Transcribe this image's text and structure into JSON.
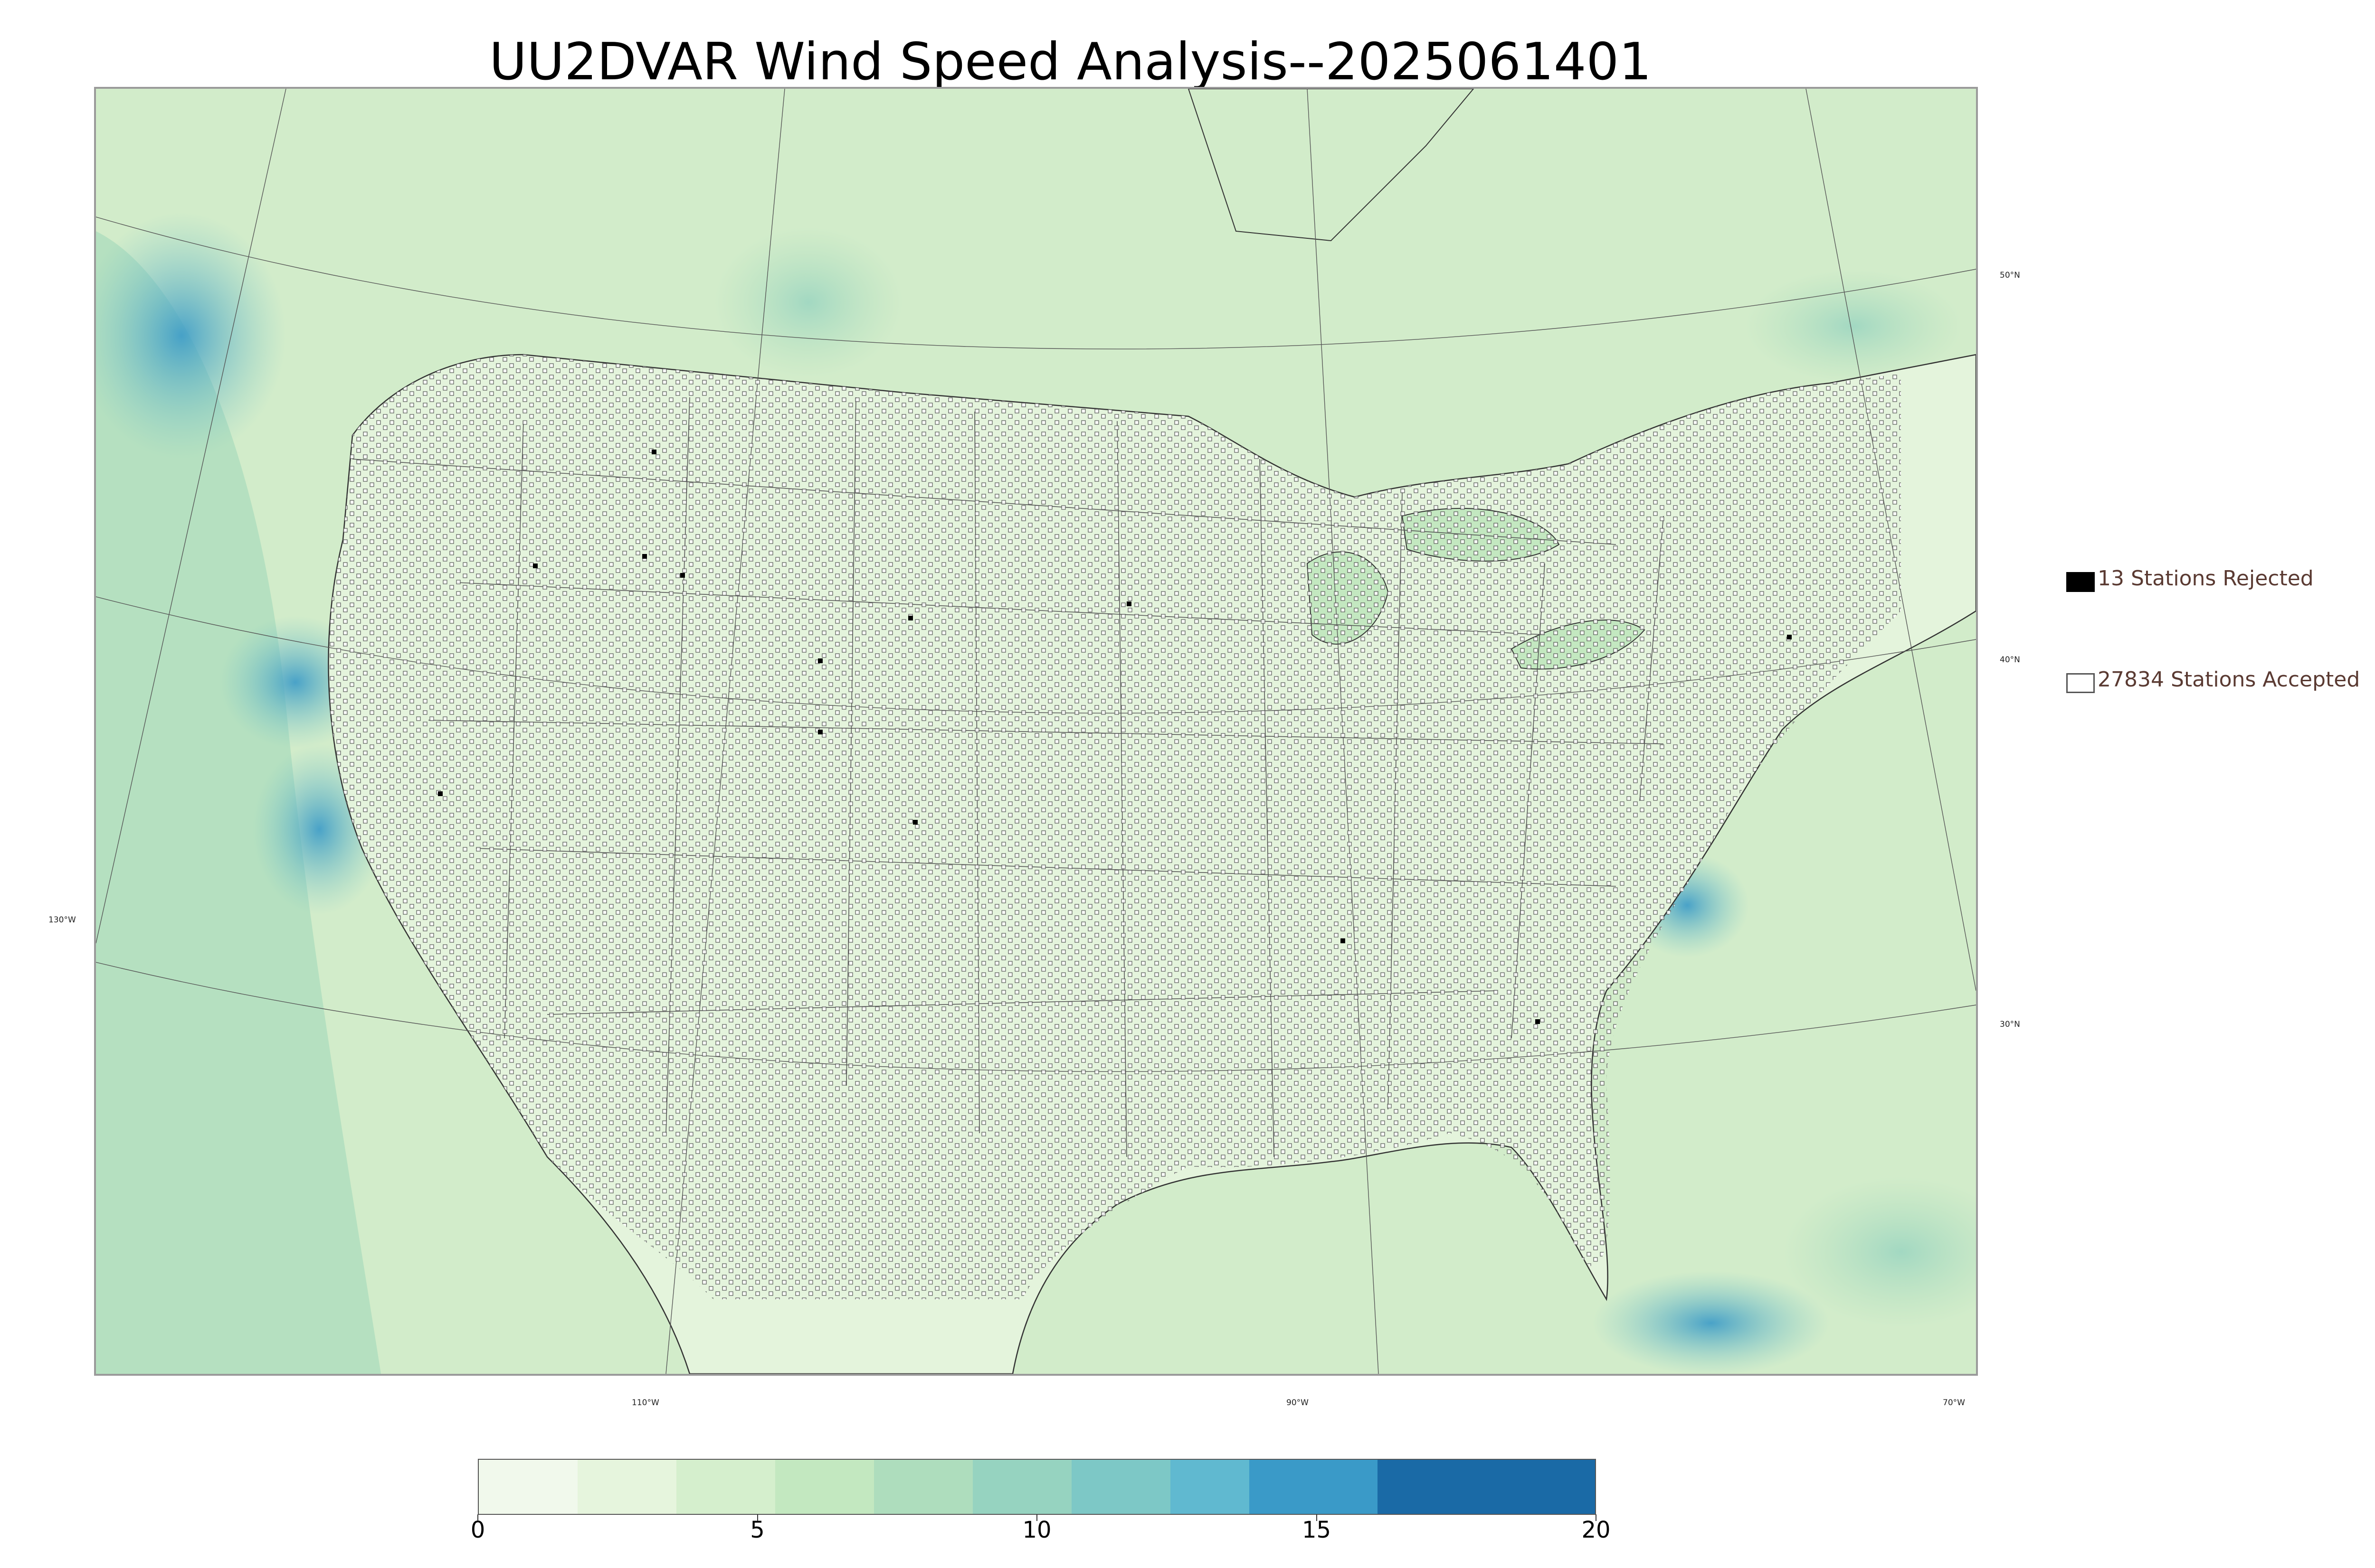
{
  "title": "UU2DVAR Wind Speed Analysis--2025061401",
  "map": {
    "projection": "lambert-conformal",
    "latitude_labels": [
      "50°N",
      "40°N",
      "30°N"
    ],
    "longitude_labels": [
      "130°W",
      "110°W",
      "90°W",
      "70°W"
    ]
  },
  "legend": {
    "rejected_label": "13 Stations Rejected",
    "accepted_label": "27834 Stations Accepted",
    "rejected_color": "#000000",
    "accepted_color": "#ffffff"
  },
  "colorbar": {
    "ticks": [
      "0",
      "5",
      "10",
      "15",
      "20"
    ],
    "min": 0,
    "max": 20,
    "colors": [
      "#f1f9ec",
      "#e6f5dd",
      "#d5efcd",
      "#c3e8c0",
      "#aeddbd",
      "#96d3c0",
      "#7dc8c6",
      "#60b9d0",
      "#3a9ac8",
      "#1a6aa6"
    ]
  }
}
